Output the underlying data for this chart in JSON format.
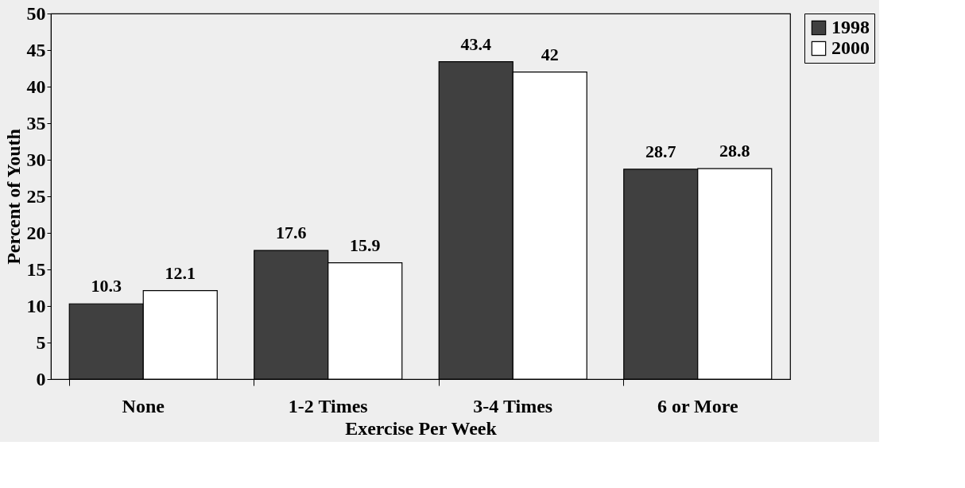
{
  "chart_data": {
    "type": "bar",
    "xlabel": "Exercise Per Week",
    "ylabel": "Percent of Youth",
    "categories": [
      "None",
      "1-2 Times",
      "3-4 Times",
      "6 or More"
    ],
    "series": [
      {
        "name": "1998",
        "color": "#404040",
        "values": [
          10.3,
          17.6,
          43.4,
          28.7
        ]
      },
      {
        "name": "2000",
        "color": "#ffffff",
        "values": [
          12.1,
          15.9,
          42,
          28.8
        ]
      }
    ],
    "ylim": [
      0,
      50
    ],
    "yticks": [
      0,
      5,
      10,
      15,
      20,
      25,
      30,
      35,
      40,
      45,
      50
    ],
    "grid": false,
    "legend": "right",
    "data_labels": true
  }
}
